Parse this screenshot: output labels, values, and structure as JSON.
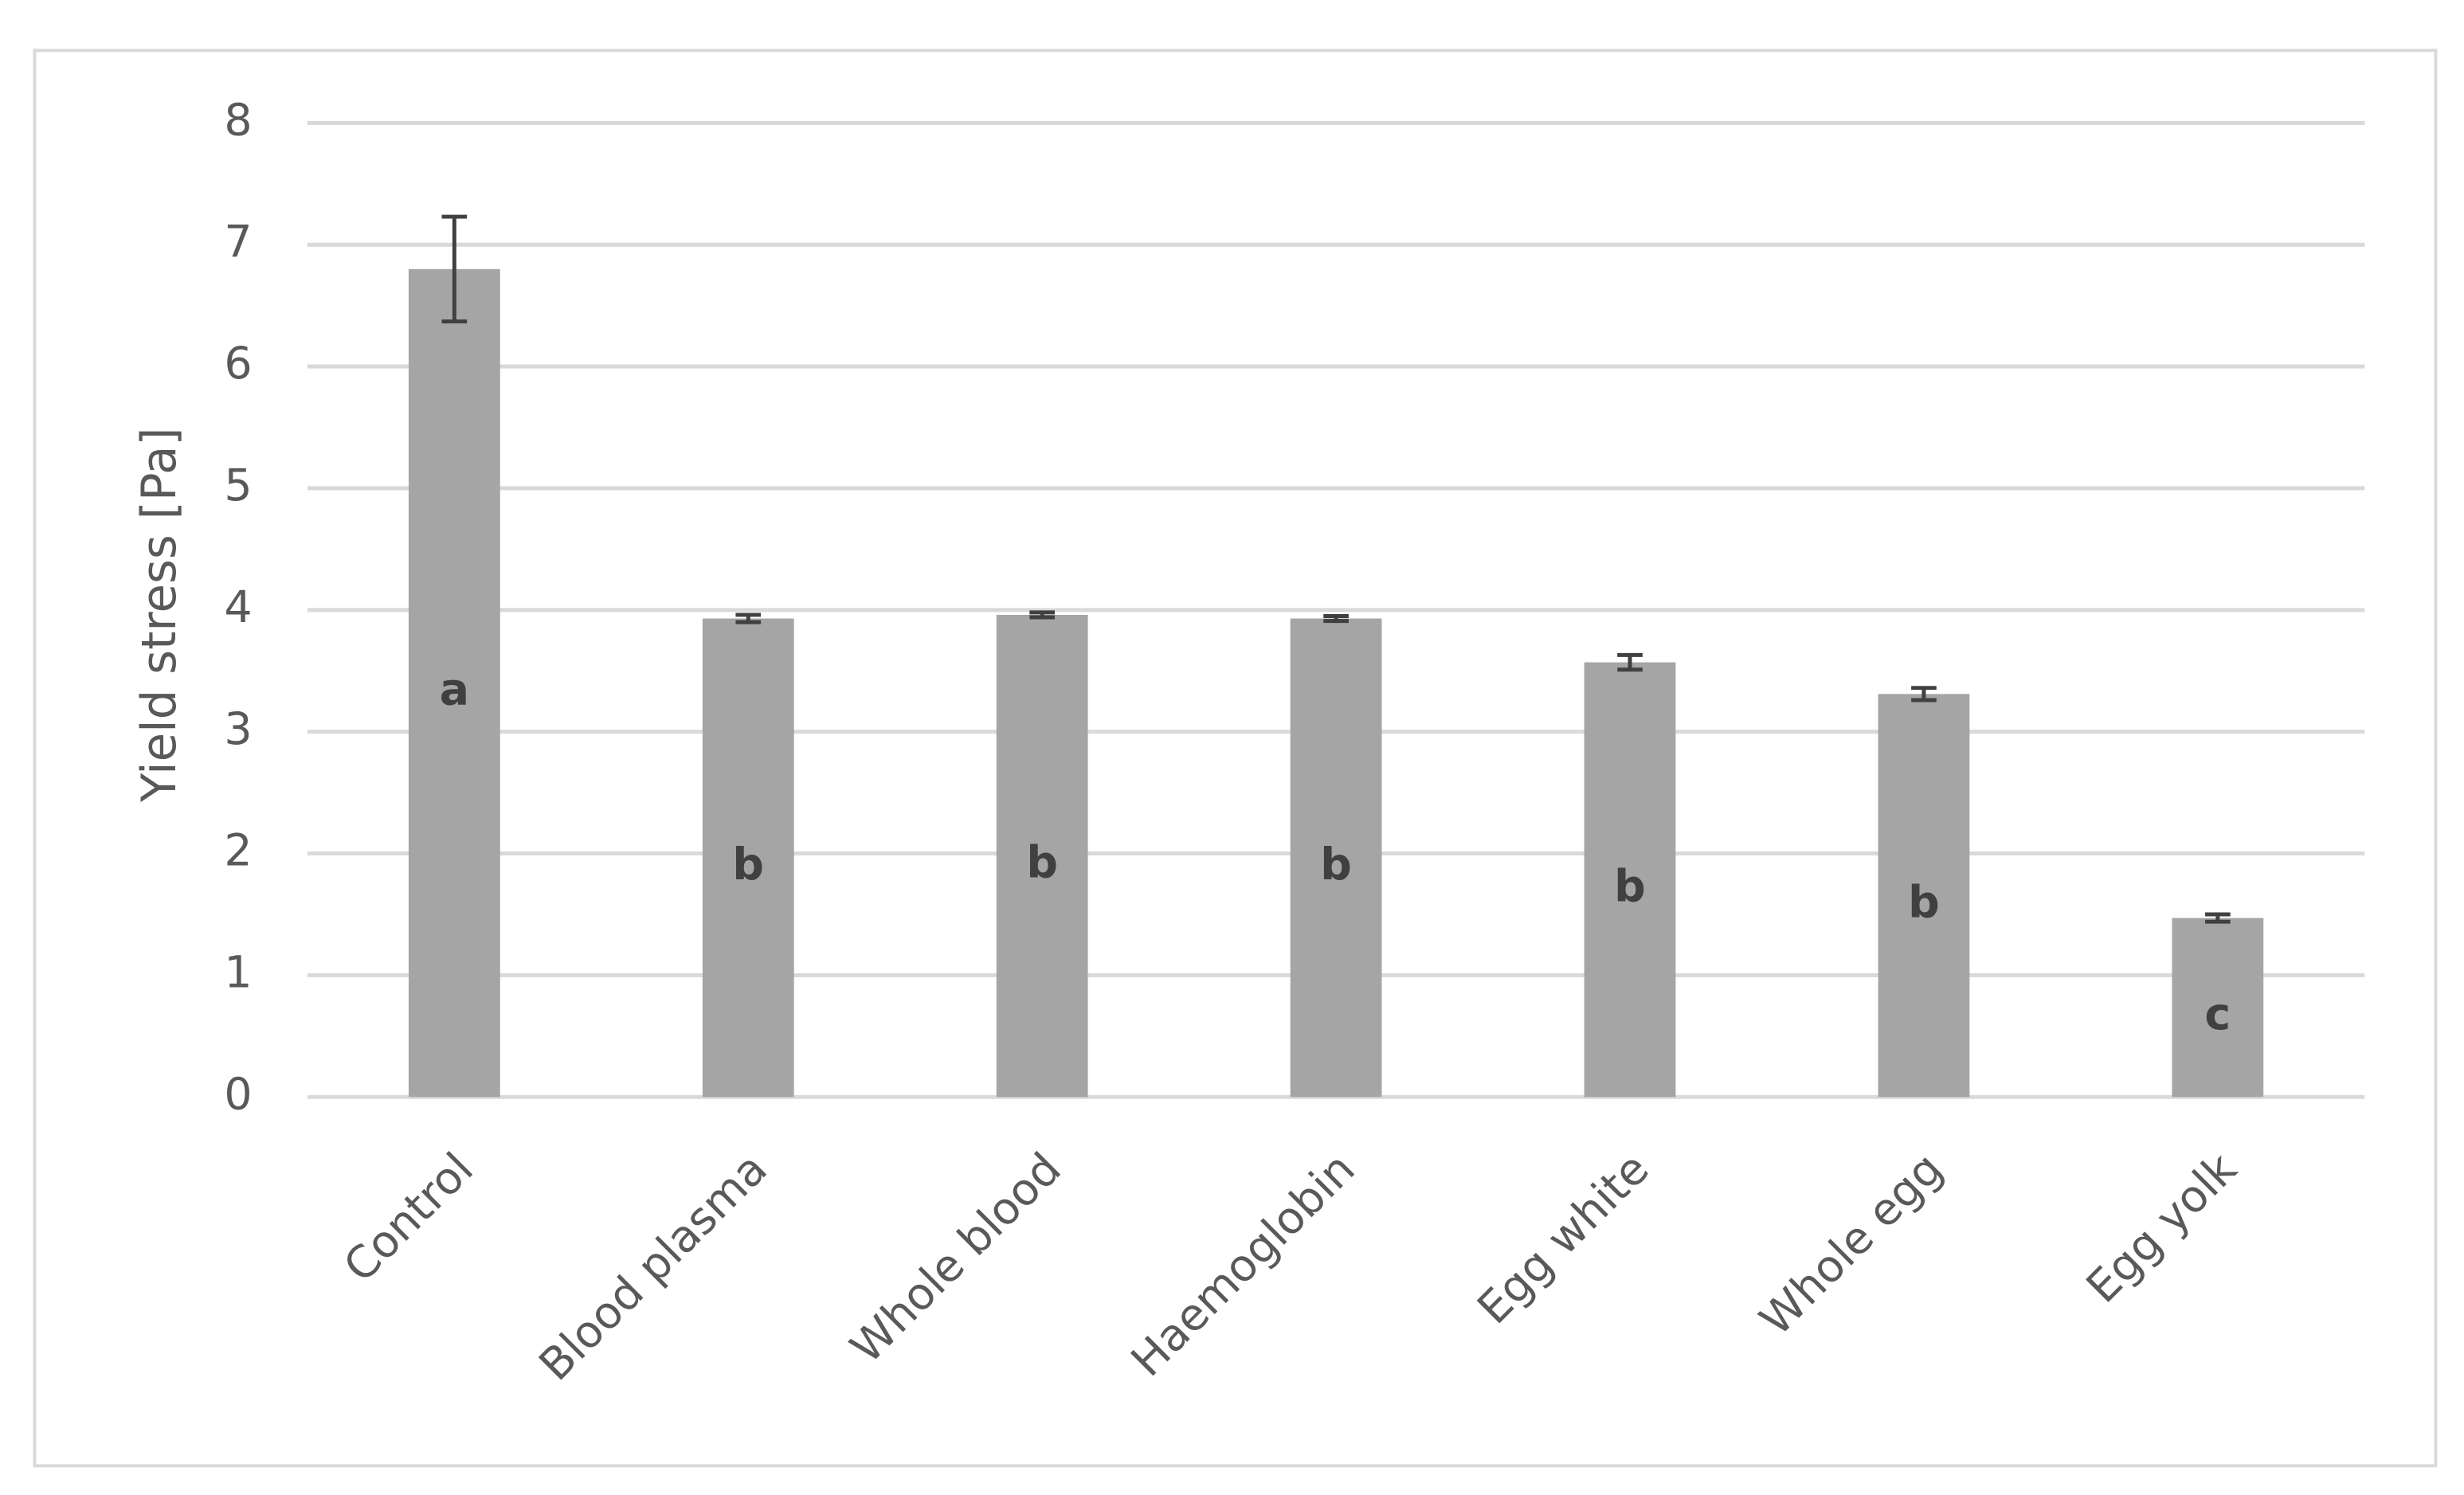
{
  "chart_data": {
    "type": "bar",
    "y_label": "Yield stress [Pa]",
    "categories": [
      "Control",
      "Blood plasma",
      "Whole blood",
      "Haemoglobin",
      "Egg white",
      "Whole egg",
      "Egg yolk"
    ],
    "values": [
      6.8,
      3.93,
      3.96,
      3.93,
      3.57,
      3.31,
      1.47
    ],
    "errors": [
      0.43,
      0.03,
      0.02,
      0.02,
      0.06,
      0.05,
      0.03
    ],
    "labels": [
      "a",
      "b",
      "b",
      "b",
      "b",
      "b",
      "c"
    ],
    "color": "#a5a5a5",
    "ylim": [
      0,
      8
    ],
    "yticks": [
      0,
      1,
      2,
      3,
      4,
      5,
      6,
      7,
      8
    ],
    "grid": true
  }
}
